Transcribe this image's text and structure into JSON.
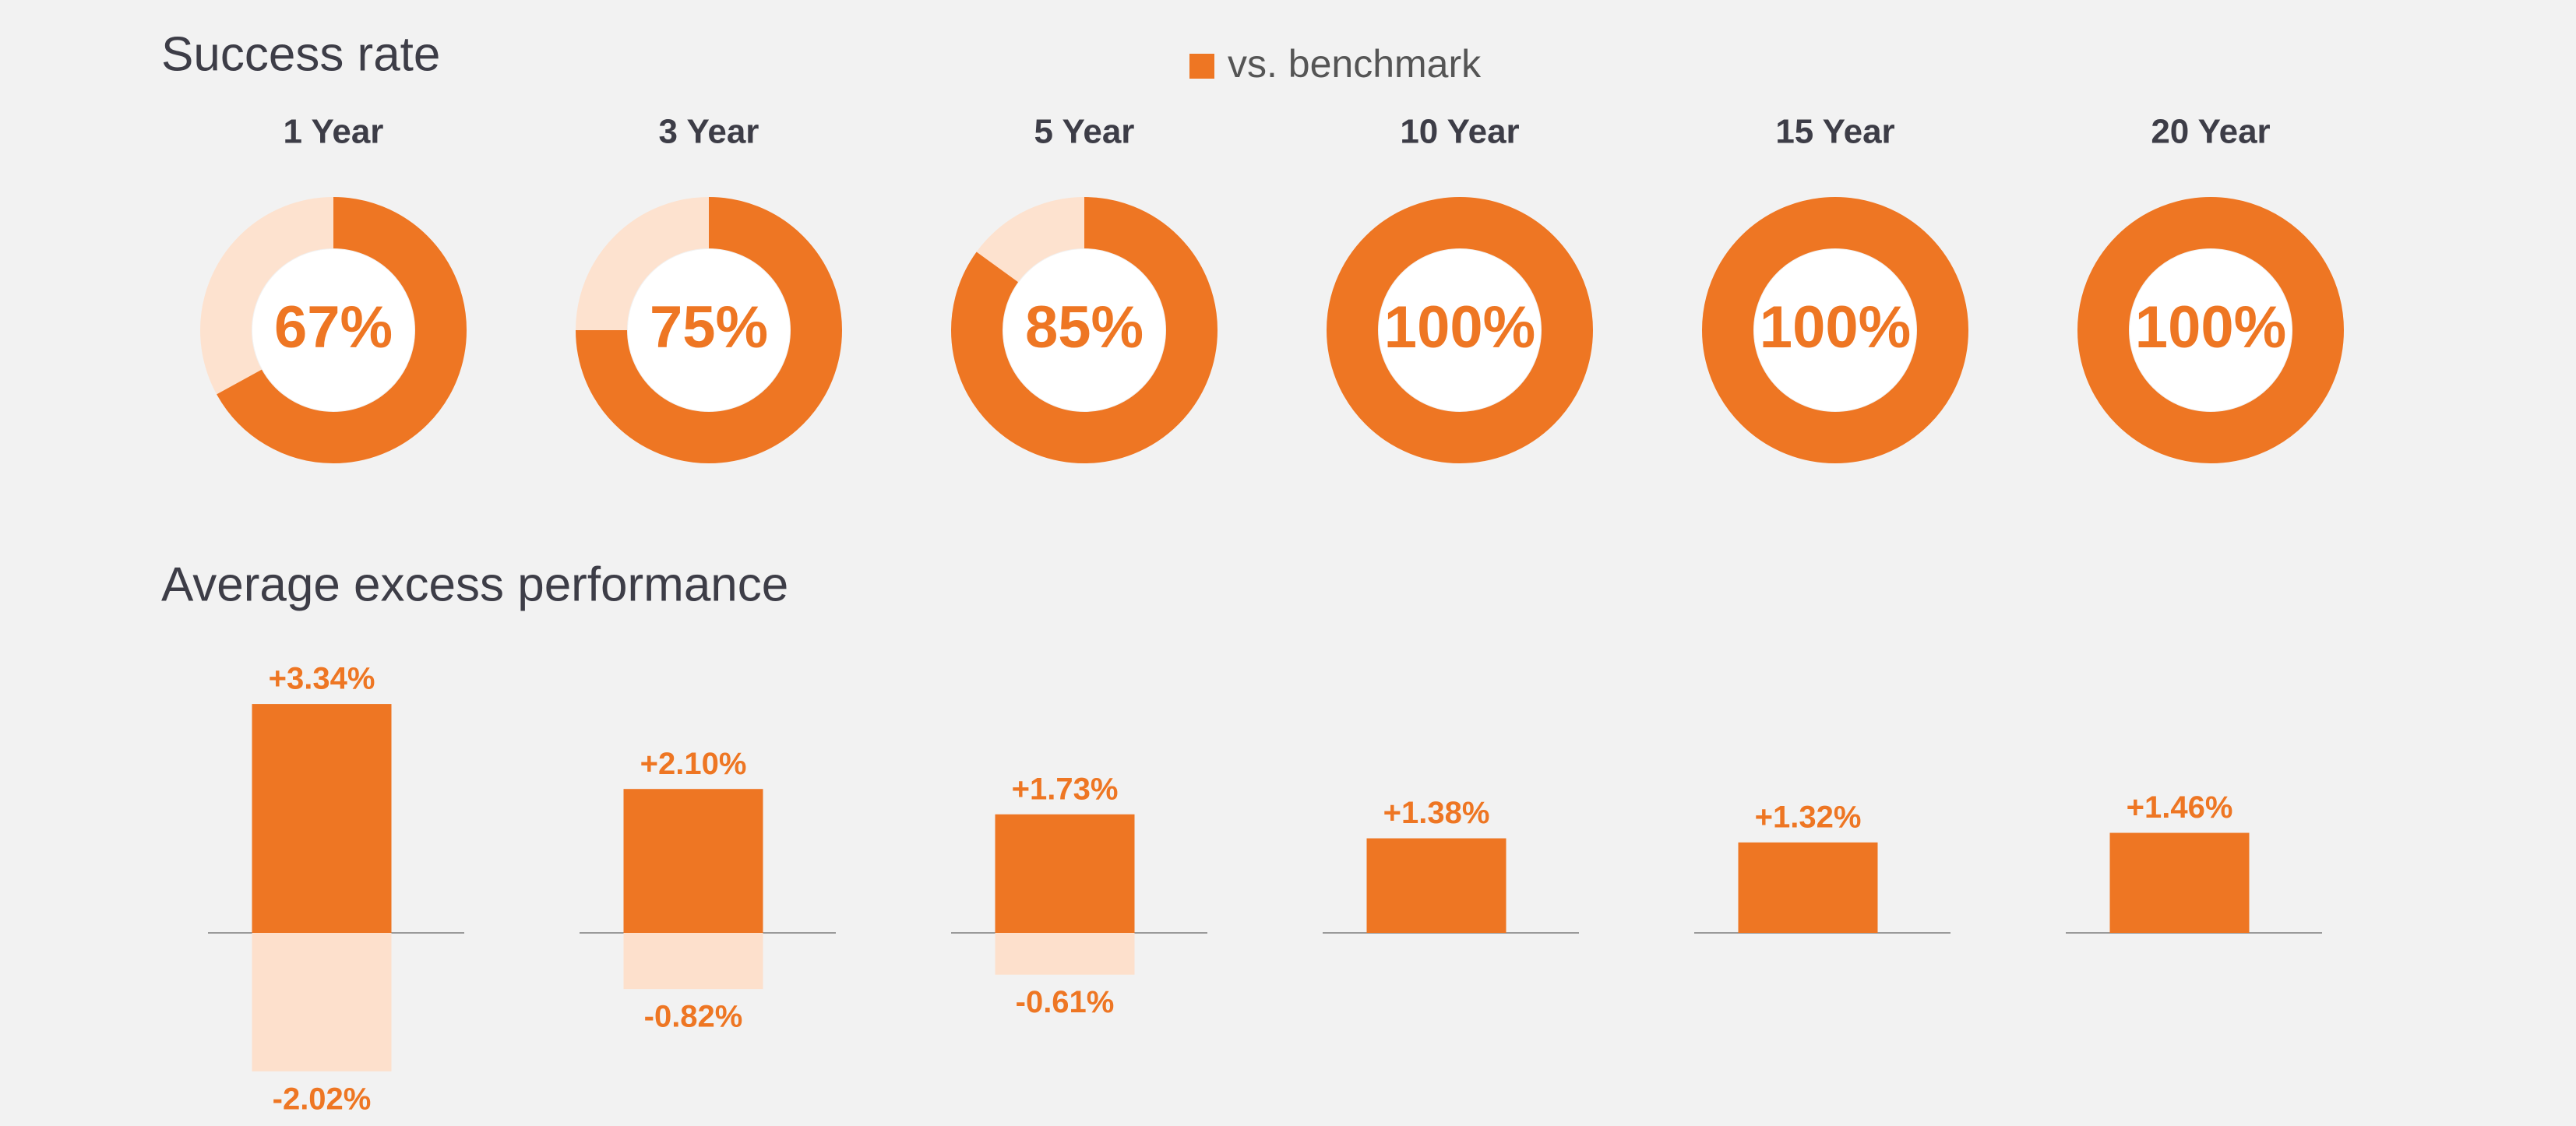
{
  "chart_data": [
    {
      "type": "donut",
      "title": "Success rate",
      "categories": [
        "1 Year",
        "3 Year",
        "5 Year",
        "10 Year",
        "15 Year",
        "20 Year"
      ],
      "series": [
        {
          "name": "vs. benchmark",
          "color": "#ee7623",
          "values": [
            67,
            75,
            85,
            100,
            100,
            100
          ],
          "value_labels": [
            "67%",
            "75%",
            "85%",
            "100%",
            "100%",
            "100%"
          ]
        }
      ],
      "remainder_color": "#fde2cf"
    },
    {
      "type": "bar",
      "title": "Average excess performance",
      "series": [
        {
          "color": "#ee7623",
          "values": [
            3.34,
            2.1,
            1.73,
            1.38,
            1.32,
            1.46
          ],
          "value_labels": [
            "+3.34%",
            "+2.10%",
            "+1.73%",
            "+1.38%",
            "+1.32%",
            "+1.46%"
          ]
        },
        {
          "color": "#fde0cc",
          "values": [
            -2.02,
            -0.82,
            -0.61,
            null,
            null,
            null
          ],
          "value_labels": [
            "-2.02%",
            "-0.82%",
            "-0.61%",
            null,
            null,
            null
          ]
        }
      ],
      "ylim": [
        -2.5,
        3.5
      ]
    }
  ]
}
